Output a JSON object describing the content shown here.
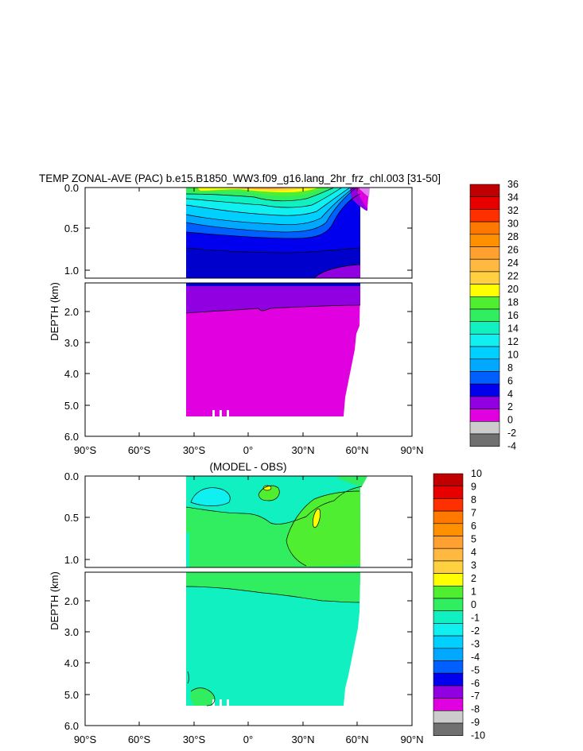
{
  "chart_data": [
    {
      "type": "heatmap",
      "title": "TEMP ZONAL-AVE (PAC) b.e15.B1850_WW3.f09_g16.lang_2hr_frz_chl.003 [31-50]",
      "ylabel": "DEPTH (km)",
      "x_ticks": [
        "90°S",
        "60°S",
        "30°S",
        "0°",
        "30°N",
        "60°N",
        "90°N"
      ],
      "y_ticks_upper": [
        "0.0",
        "0.5",
        "1.0"
      ],
      "y_ticks_lower": [
        "2.0",
        "3.0",
        "4.0",
        "5.0",
        "6.0"
      ],
      "colorbar_labels": [
        "36",
        "34",
        "32",
        "30",
        "28",
        "26",
        "24",
        "22",
        "20",
        "18",
        "16",
        "14",
        "12",
        "10",
        "8",
        "6",
        "4",
        "2",
        "0",
        "-2",
        "-4"
      ],
      "colorbar_colors": [
        "#c00000",
        "#e80000",
        "#ff3000",
        "#ff7800",
        "#ff9000",
        "#ffa030",
        "#ffb840",
        "#ffd040",
        "#ffff00",
        "#50ee30",
        "#30ee60",
        "#10f0c0",
        "#10f0f0",
        "#00d0ff",
        "#00a8ff",
        "#0060ff",
        "#0000ee",
        "#9000e0",
        "#e000e0",
        "#cccccc",
        "#707070"
      ]
    },
    {
      "type": "heatmap",
      "title": "(MODEL - OBS)",
      "ylabel": "DEPTH (km)",
      "x_ticks": [
        "90°S",
        "60°S",
        "30°S",
        "0°",
        "30°N",
        "60°N",
        "90°N"
      ],
      "y_ticks_upper": [
        "0.0",
        "0.5",
        "1.0"
      ],
      "y_ticks_lower": [
        "2.0",
        "3.0",
        "4.0",
        "5.0",
        "6.0"
      ],
      "colorbar_labels": [
        "10",
        "9",
        "8",
        "7",
        "6",
        "5",
        "4",
        "3",
        "2",
        "1",
        "0",
        "-1",
        "-2",
        "-3",
        "-4",
        "-5",
        "-6",
        "-7",
        "-8",
        "-9",
        "-10"
      ],
      "colorbar_colors": [
        "#c00000",
        "#e80000",
        "#ff3000",
        "#ff7800",
        "#ff9000",
        "#ffa030",
        "#ffb840",
        "#ffd040",
        "#ffff00",
        "#50ee30",
        "#30ee60",
        "#10f0c0",
        "#10f0f0",
        "#00d0ff",
        "#00a8ff",
        "#0060ff",
        "#0000ee",
        "#9000e0",
        "#e000e0",
        "#cccccc",
        "#707070"
      ]
    }
  ]
}
